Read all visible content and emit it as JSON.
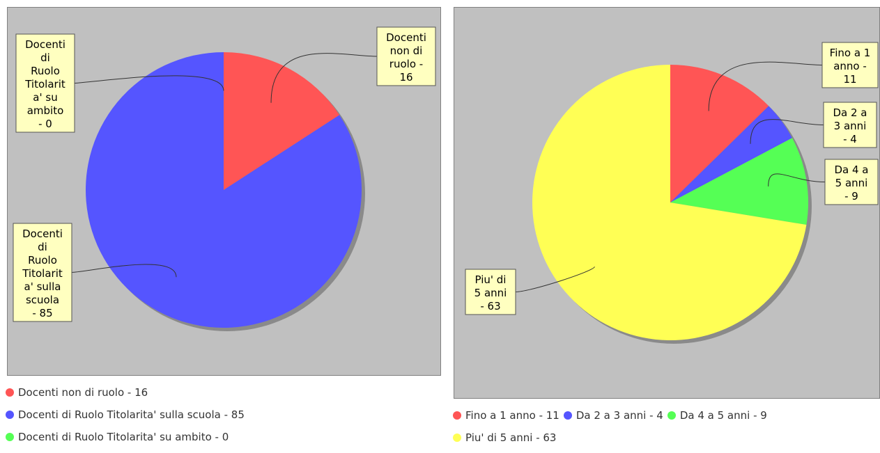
{
  "chart_data": [
    {
      "type": "pie",
      "slices": [
        {
          "label": "Docenti non di ruolo - 16",
          "value": 16,
          "color": "#ff5555"
        },
        {
          "label": "Docenti di Ruolo Titolarita' sulla scuola - 85",
          "value": 85,
          "color": "#5555ff"
        },
        {
          "label": "Docenti di Ruolo Titolarita' su ambito - 0",
          "value": 0,
          "color": "#55ff55"
        }
      ],
      "callouts": [
        {
          "lines": [
            "Docenti",
            "non di",
            "ruolo -",
            "16"
          ]
        },
        {
          "lines": [
            "Docenti",
            "di",
            "Ruolo",
            "Titolarit",
            "a' sulla",
            "scuola",
            "- 85"
          ]
        },
        {
          "lines": [
            "Docenti",
            "di",
            "Ruolo",
            "Titolarit",
            "a' su",
            "ambito",
            "- 0"
          ]
        }
      ],
      "legend": [
        "Docenti non di ruolo - 16",
        "Docenti di Ruolo Titolarita' sulla scuola - 85",
        "Docenti di Ruolo Titolarita' su ambito - 0"
      ]
    },
    {
      "type": "pie",
      "slices": [
        {
          "label": "Fino a 1 anno - 11",
          "value": 11,
          "color": "#ff5555"
        },
        {
          "label": "Da 2 a 3 anni - 4",
          "value": 4,
          "color": "#5555ff"
        },
        {
          "label": "Da 4 a 5 anni - 9",
          "value": 9,
          "color": "#55ff55"
        },
        {
          "label": "Piu' di 5 anni - 63",
          "value": 63,
          "color": "#ffff55"
        }
      ],
      "callouts": [
        {
          "lines": [
            "Fino a 1",
            "anno -",
            "11"
          ]
        },
        {
          "lines": [
            "Da 2 a",
            "3 anni",
            "- 4"
          ]
        },
        {
          "lines": [
            "Da 4 a",
            "5 anni",
            "- 9"
          ]
        },
        {
          "lines": [
            "Piu' di",
            "5 anni",
            "- 63"
          ]
        }
      ],
      "legend": [
        "Fino a 1 anno - 11",
        "Da 2 a 3 anni - 4",
        "Da 4 a 5 anni - 9",
        "Piu' di 5 anni - 63"
      ]
    }
  ]
}
